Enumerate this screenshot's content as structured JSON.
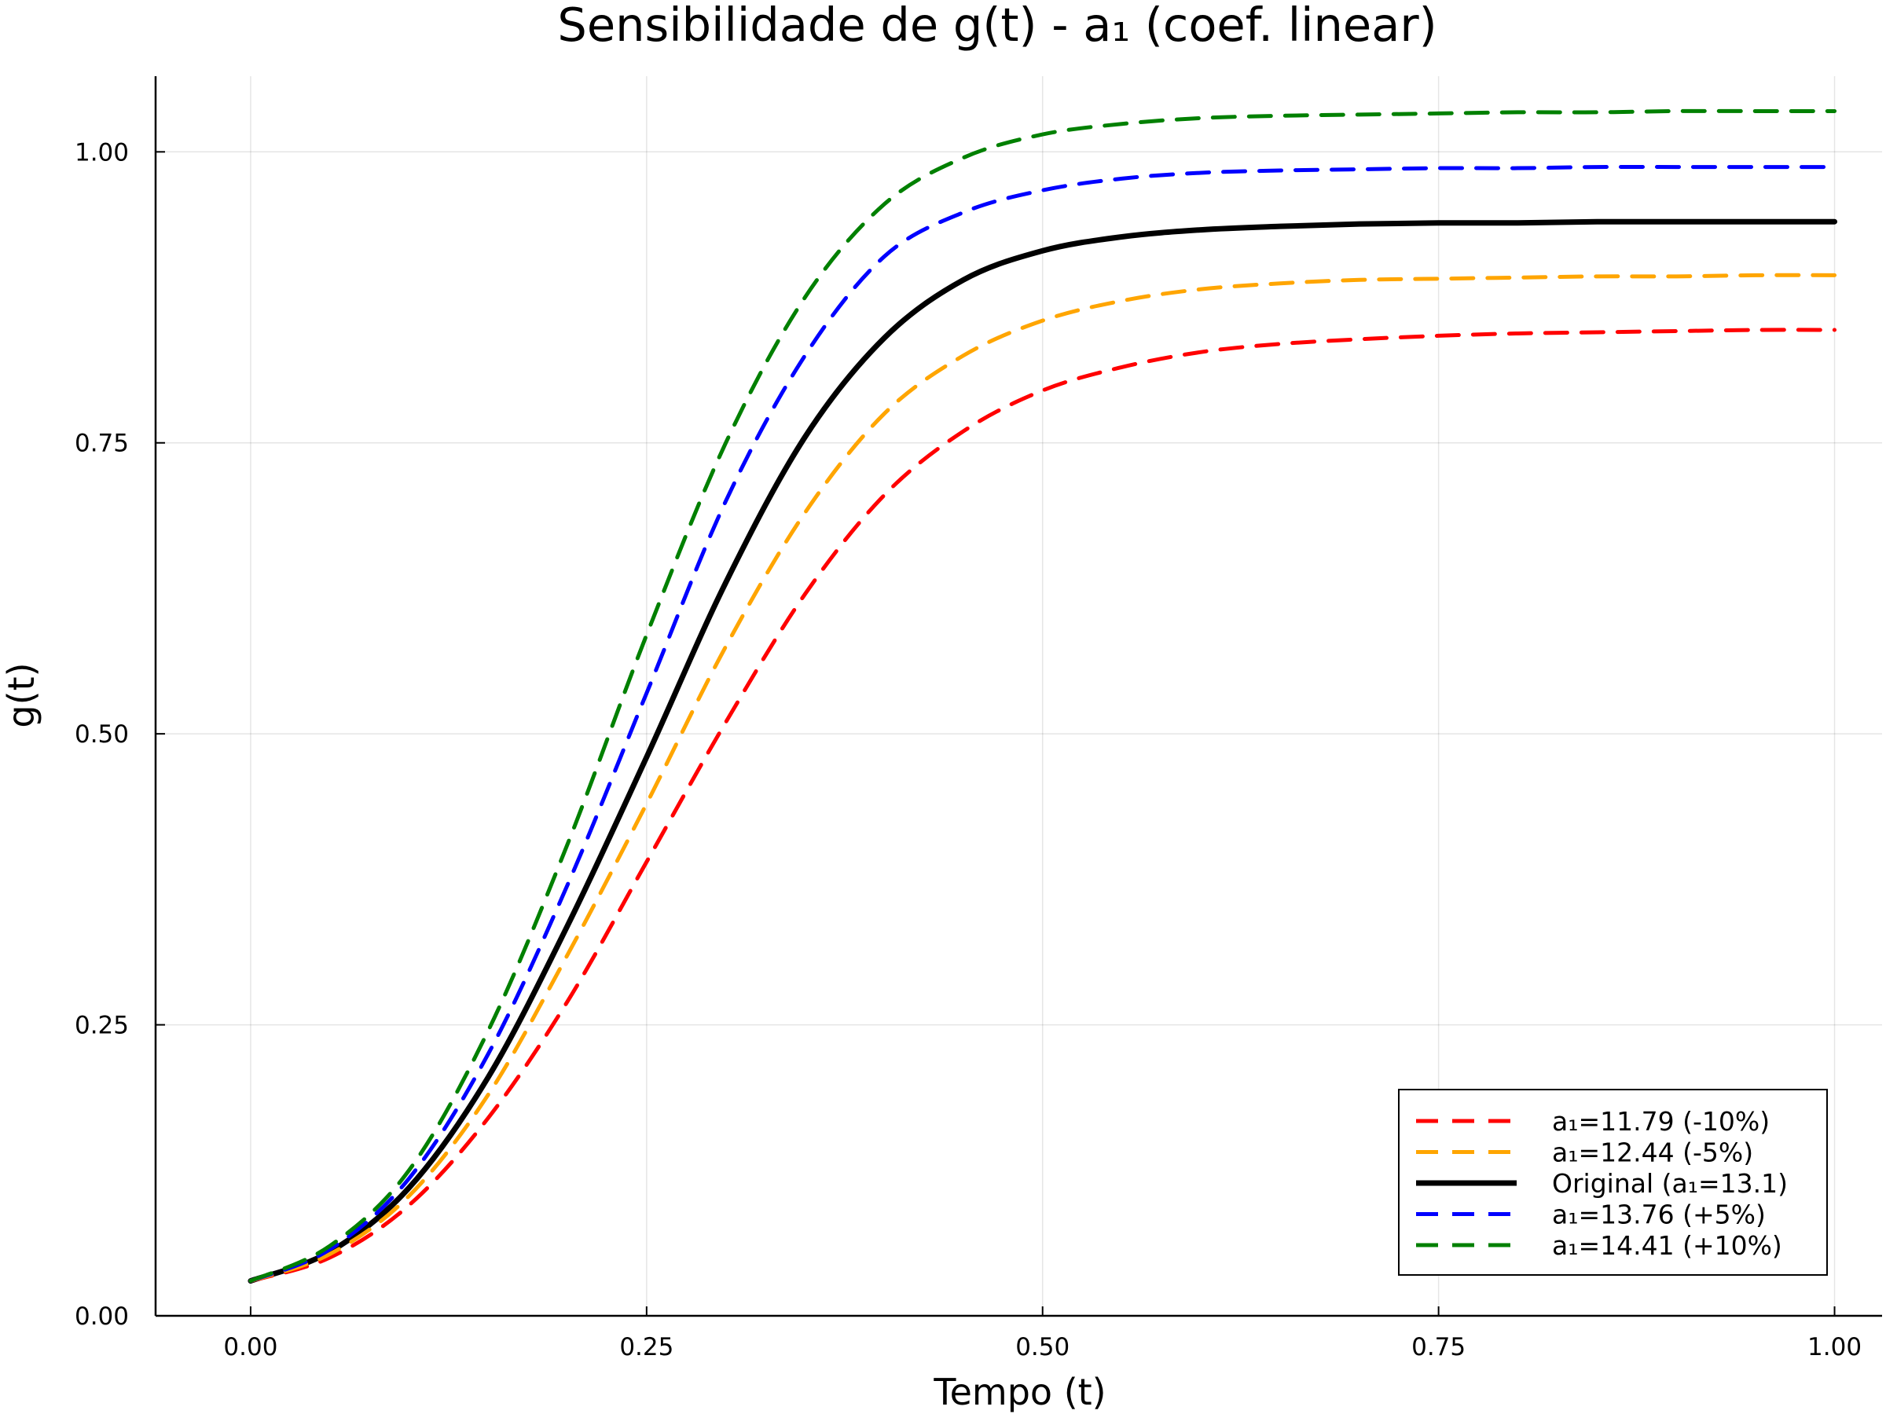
{
  "chart_data": {
    "type": "line",
    "title": "Sensibilidade de g(t) - a₁ (coef. linear)",
    "xlabel": "Tempo (t)",
    "ylabel": "g(t)",
    "xlim": [
      -0.06,
      1.03
    ],
    "ylim": [
      0.0,
      1.065
    ],
    "xticks": [
      0.0,
      0.25,
      0.5,
      0.75,
      1.0
    ],
    "xtick_labels": [
      "0.00",
      "0.25",
      "0.50",
      "0.75",
      "1.00"
    ],
    "yticks": [
      0.0,
      0.25,
      0.5,
      0.75,
      1.0
    ],
    "ytick_labels": [
      "0.00",
      "0.25",
      "0.50",
      "0.75",
      "1.00"
    ],
    "grid": true,
    "legend_position": "bottom-right",
    "x": [
      0.0,
      0.05,
      0.1,
      0.15,
      0.2,
      0.25,
      0.3,
      0.35,
      0.4,
      0.45,
      0.5,
      0.55,
      0.6,
      0.65,
      0.7,
      0.75,
      0.8,
      0.85,
      0.9,
      0.95,
      1.0
    ],
    "series": [
      {
        "name": "a₁=11.79 (-10%)",
        "color": "#ff0000",
        "style": "dashed",
        "values": [
          0.03,
          0.05,
          0.095,
          0.17,
          0.27,
          0.39,
          0.51,
          0.62,
          0.705,
          0.76,
          0.795,
          0.815,
          0.828,
          0.835,
          0.839,
          0.842,
          0.844,
          0.845,
          0.846,
          0.847,
          0.847
        ]
      },
      {
        "name": "a₁=12.44 (-5%)",
        "color": "#ffa500",
        "style": "dashed",
        "values": [
          0.03,
          0.053,
          0.103,
          0.19,
          0.31,
          0.44,
          0.575,
          0.69,
          0.775,
          0.825,
          0.855,
          0.872,
          0.882,
          0.887,
          0.89,
          0.891,
          0.892,
          0.893,
          0.893,
          0.894,
          0.894
        ]
      },
      {
        "name": "Original (a₁=13.1)",
        "color": "#000000",
        "style": "solid",
        "values": [
          0.03,
          0.055,
          0.11,
          0.205,
          0.335,
          0.48,
          0.63,
          0.755,
          0.84,
          0.89,
          0.915,
          0.927,
          0.933,
          0.936,
          0.938,
          0.939,
          0.939,
          0.94,
          0.94,
          0.94,
          0.94
        ]
      },
      {
        "name": "a₁=13.76 (+5%)",
        "color": "#0000ff",
        "style": "dashed",
        "values": [
          0.03,
          0.057,
          0.118,
          0.225,
          0.37,
          0.535,
          0.7,
          0.825,
          0.91,
          0.948,
          0.967,
          0.977,
          0.982,
          0.984,
          0.985,
          0.986,
          0.986,
          0.987,
          0.987,
          0.987,
          0.987
        ]
      },
      {
        "name": "a₁=14.41 (+10%)",
        "color": "#008000",
        "style": "dashed",
        "values": [
          0.03,
          0.06,
          0.125,
          0.245,
          0.405,
          0.585,
          0.75,
          0.875,
          0.955,
          0.995,
          1.015,
          1.024,
          1.029,
          1.031,
          1.032,
          1.033,
          1.034,
          1.034,
          1.035,
          1.035,
          1.035
        ]
      }
    ]
  }
}
